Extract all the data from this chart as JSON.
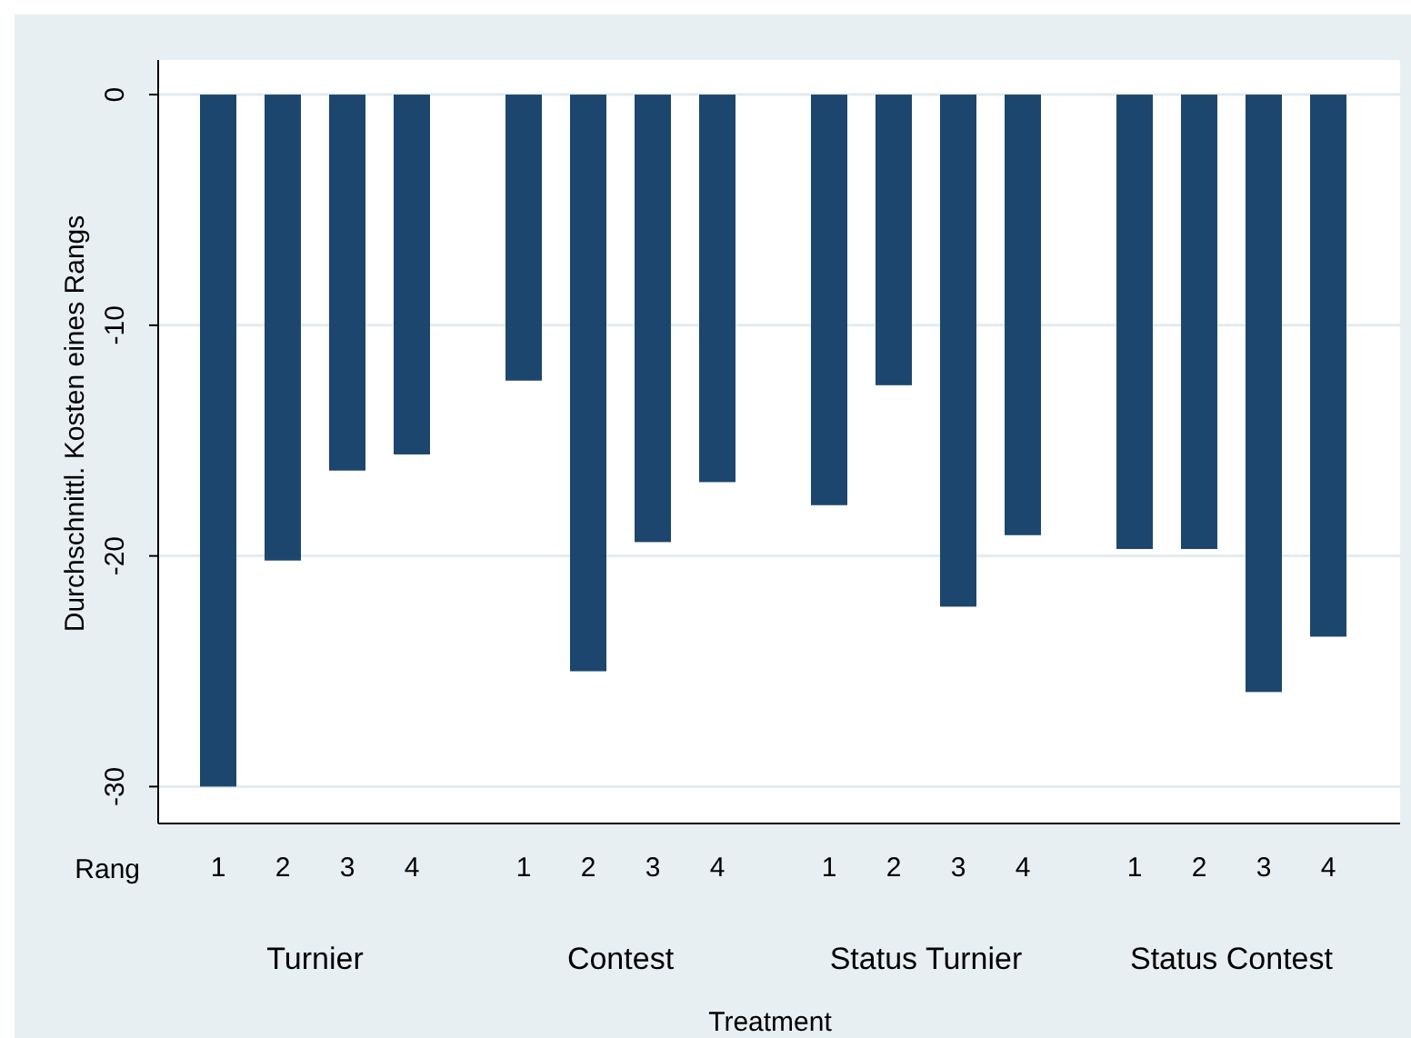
{
  "chart_data": {
    "type": "bar",
    "ylabel": "Durchschnittl. Kosten eines Rangs",
    "xlabel": "Treatment",
    "categories": [
      "1",
      "2",
      "3",
      "4",
      "1",
      "2",
      "3",
      "4",
      "1",
      "2",
      "3",
      "4",
      "1",
      "2",
      "3",
      "4"
    ],
    "values": [
      -30,
      -20.2,
      -16.3,
      -15.6,
      -12.4,
      -25.0,
      -19.4,
      -16.8,
      -17.8,
      -12.6,
      -22.2,
      -19.1,
      -19.7,
      -19.7,
      -25.9,
      -23.5
    ],
    "color": "#1c466e",
    "ylim": [
      -31.6,
      1.5
    ],
    "yticks": [
      -30,
      -20,
      -10,
      0
    ],
    "grid": "y",
    "annotations": [
      "Rang",
      "Turnier",
      "Contest",
      "Status Turnier",
      "Status Contest"
    ]
  }
}
